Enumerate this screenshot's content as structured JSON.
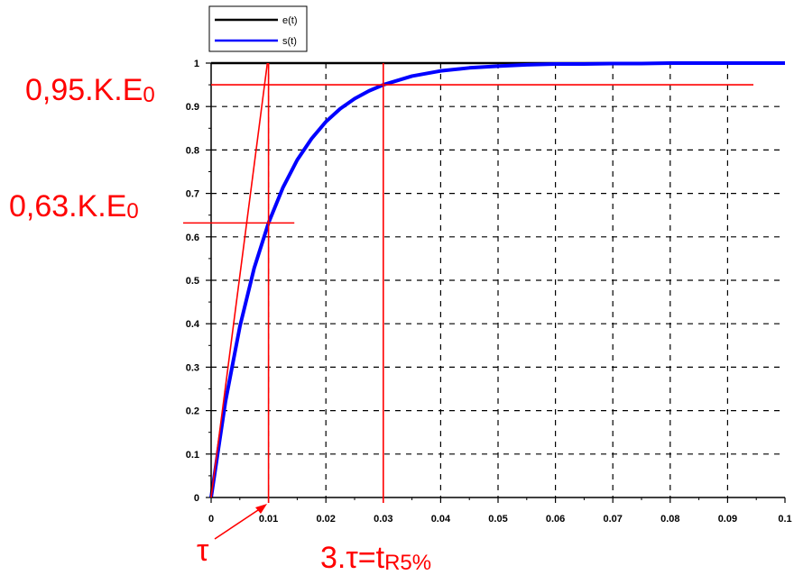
{
  "chart_data": {
    "type": "line",
    "x_ticks": [
      0,
      0.01,
      0.02,
      0.03,
      0.04,
      0.05,
      0.06,
      0.07,
      0.08,
      0.09,
      0.1
    ],
    "x_tick_labels": [
      "0",
      "0.01",
      "0.02",
      "0.03",
      "0.04",
      "0.05",
      "0.06",
      "0.07",
      "0.08",
      "0.09",
      "0.1"
    ],
    "y_ticks": [
      0,
      0.1,
      0.2,
      0.3,
      0.4,
      0.5,
      0.6,
      0.7,
      0.8,
      0.9,
      1
    ],
    "y_tick_labels": [
      "0",
      "0.1",
      "0.2",
      "0.3",
      "0.4",
      "0.5",
      "0.6",
      "0.7",
      "0.8",
      "0.9",
      "1"
    ],
    "xlim": [
      0,
      0.1
    ],
    "ylim": [
      0,
      1
    ],
    "grid": true,
    "legend_position": "top-left",
    "series": [
      {
        "name": "e(t)",
        "color": "#000000",
        "x": [
          0,
          0.1
        ],
        "y": [
          1,
          1
        ]
      },
      {
        "name": "s(t)",
        "color": "#0000ff",
        "x": [
          0,
          0.0025,
          0.005,
          0.0075,
          0.01,
          0.0125,
          0.015,
          0.0175,
          0.02,
          0.0225,
          0.025,
          0.0275,
          0.03,
          0.035,
          0.04,
          0.045,
          0.05,
          0.055,
          0.06,
          0.065,
          0.07,
          0.075,
          0.08,
          0.085,
          0.09,
          0.095,
          0.1
        ],
        "y": [
          0,
          0.221,
          0.393,
          0.528,
          0.632,
          0.713,
          0.777,
          0.826,
          0.865,
          0.895,
          0.918,
          0.936,
          0.95,
          0.97,
          0.982,
          0.989,
          0.993,
          0.996,
          0.998,
          0.998,
          0.999,
          0.999,
          1,
          1,
          1,
          1,
          1
        ]
      }
    ],
    "annotations": {
      "level_95": "0,95.K.E",
      "level_95_sub": "0",
      "level_63": "0,63.K.E",
      "level_63_sub": "0",
      "tau_label": "τ",
      "t_r5_main": "3.τ=t",
      "t_r5_sub": "R5%",
      "y_95": 0.95,
      "y_63": 0.632,
      "x_tau": 0.01,
      "x_3tau": 0.03,
      "color": "#ff0000"
    }
  }
}
